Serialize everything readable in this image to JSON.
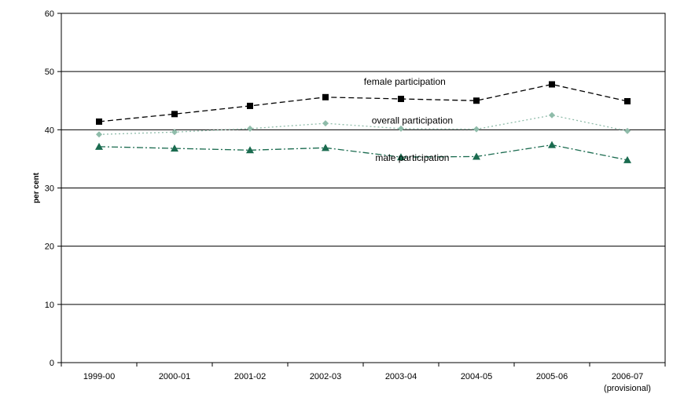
{
  "chart_data": {
    "type": "line",
    "title": "",
    "xlabel": "",
    "ylabel": "per cent",
    "ylim": [
      0,
      60
    ],
    "yticks": [
      0,
      10,
      20,
      30,
      40,
      50,
      60
    ],
    "grid": "horizontal",
    "categories": [
      {
        "line1": "1999-00",
        "line2": ""
      },
      {
        "line1": "2000-01",
        "line2": ""
      },
      {
        "line1": "2001-02",
        "line2": ""
      },
      {
        "line1": "2002-03",
        "line2": ""
      },
      {
        "line1": "2003-04",
        "line2": ""
      },
      {
        "line1": "2004-05",
        "line2": ""
      },
      {
        "line1": "2005-06",
        "line2": ""
      },
      {
        "line1": "2006-07",
        "line2": "(provisional)"
      }
    ],
    "series": [
      {
        "name": "female participation",
        "values": [
          41.4,
          42.7,
          44.1,
          45.6,
          45.3,
          45.0,
          47.8,
          44.9
        ],
        "color": "#000000",
        "line_style": "dashed",
        "marker": "square"
      },
      {
        "name": "overall participation",
        "values": [
          39.2,
          39.6,
          40.2,
          41.1,
          40.2,
          40.1,
          42.5,
          39.8
        ],
        "color": "#8fbcaa",
        "line_style": "dotted",
        "marker": "diamond"
      },
      {
        "name": "male participation",
        "values": [
          37.1,
          36.8,
          36.5,
          36.9,
          35.3,
          35.4,
          37.4,
          34.8
        ],
        "color": "#1a6b4f",
        "line_style": "dash-dot",
        "marker": "triangle"
      }
    ]
  }
}
